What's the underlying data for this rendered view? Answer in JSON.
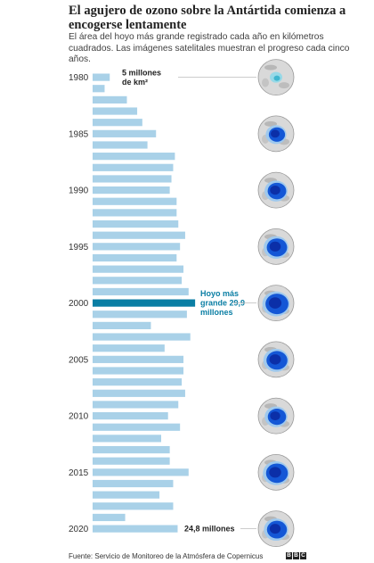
{
  "title": "El agujero de ozono sobre la Antártida comienza a encogerse lentamente",
  "subtitle": "El área del hoyo más grande registrado cada año en kilómetros cuadrados. Las imágenes satelitales muestran el progreso cada cinco años.",
  "source": "Fuente: Servicio de Monitoreo de la Atmósfera de Copernicus",
  "logo": [
    "B",
    "B",
    "C"
  ],
  "colors": {
    "bar": "#a9d1e8",
    "highlight": "#0a7ea4",
    "text": "#222222",
    "leader": "#bbbbbb"
  },
  "chart_data": {
    "type": "bar",
    "orientation": "horizontal",
    "unit": "millones de km²",
    "years": [
      1980,
      1981,
      1982,
      1983,
      1984,
      1985,
      1986,
      1987,
      1988,
      1989,
      1990,
      1991,
      1992,
      1993,
      1994,
      1995,
      1996,
      1997,
      1998,
      1999,
      2000,
      2001,
      2002,
      2003,
      2004,
      2005,
      2006,
      2007,
      2008,
      2009,
      2010,
      2011,
      2012,
      2013,
      2014,
      2015,
      2016,
      2017,
      2018,
      2019,
      2020
    ],
    "values": [
      5,
      3.5,
      10,
      13,
      14.5,
      18.5,
      16,
      24,
      23.5,
      23,
      22.5,
      24.5,
      24.5,
      25,
      27,
      25.5,
      24.5,
      26.5,
      26,
      28,
      29.9,
      27.5,
      17,
      28.5,
      21,
      26.5,
      26.5,
      26,
      27,
      25,
      22,
      25.5,
      20,
      22.5,
      22.5,
      28,
      23.5,
      19.5,
      23.5,
      9.5,
      24.8
    ],
    "highlight_year": 2000,
    "labeled_years": [
      1980,
      1985,
      1990,
      1995,
      2000,
      2005,
      2010,
      2015,
      2020
    ],
    "annotations": [
      {
        "year": 1980,
        "lines": [
          "5 millones",
          "de km²"
        ]
      },
      {
        "year": 2000,
        "lines": [
          "Hoyo más",
          "grande 29,9",
          "millones"
        ]
      },
      {
        "year": 2020,
        "lines": [
          "24,8 millones"
        ]
      }
    ],
    "satellite_years": [
      1980,
      1985,
      1990,
      1995,
      2000,
      2005,
      2010,
      2015,
      2020
    ]
  }
}
